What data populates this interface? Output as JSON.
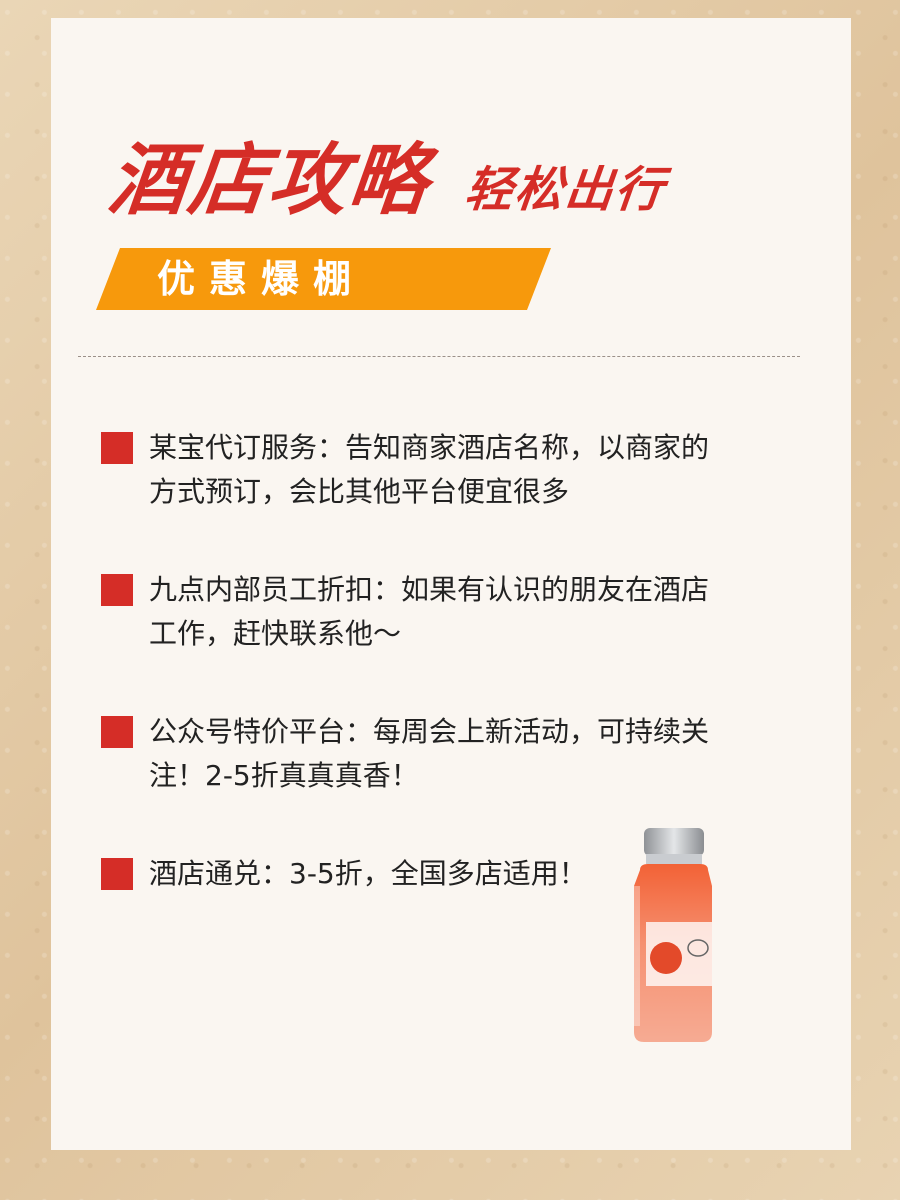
{
  "header": {
    "title": "酒店攻略",
    "subtitle": "轻松出行",
    "banner": "优惠爆棚"
  },
  "tips": [
    {
      "text": "某宝代订服务：告知商家酒店名称，以商家的方式预订，会比其他平台便宜很多"
    },
    {
      "text": "九点内部员工折扣：如果有认识的朋友在酒店工作，赶快联系他～"
    },
    {
      "text": "公众号特价平台：每周会上新活动，可持续关注！2-5折真真真香！"
    },
    {
      "text": "酒店通兑：3-5折，全国多店适用！"
    }
  ],
  "colors": {
    "accent_red": "#d52d27",
    "banner_orange": "#f7990c",
    "card_bg": "#faf6f1"
  },
  "decor": {
    "product_icon": "juice-bottle-icon"
  }
}
